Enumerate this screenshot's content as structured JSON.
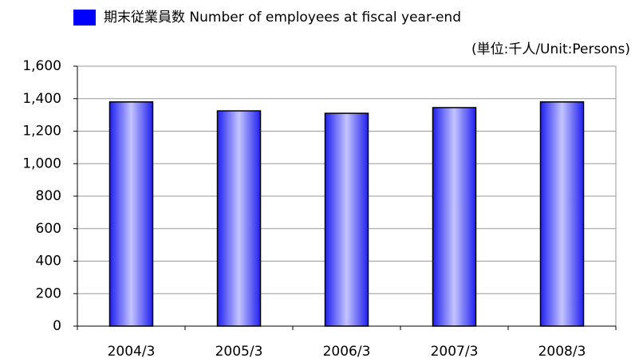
{
  "chart_data": {
    "type": "bar",
    "unit_note": "(単位:千人/Unit:Persons)",
    "categories": [
      "2004/3",
      "2005/3",
      "2006/3",
      "2007/3",
      "2008/3"
    ],
    "series": [
      {
        "name": "期末従業員数  Number of employees at fiscal year-end",
        "color": "#2020f0",
        "values": [
          1380,
          1325,
          1310,
          1345,
          1380
        ]
      }
    ],
    "ylim": [
      0,
      1600
    ],
    "yticks": [
      0,
      200,
      400,
      600,
      800,
      {
        "value": 1000,
        "label": "1,000"
      },
      {
        "value": 1200,
        "label": "1,200"
      },
      {
        "value": 1400,
        "label": "1,400"
      },
      {
        "value": 1600,
        "label": "1,600"
      }
    ],
    "grid": true
  }
}
